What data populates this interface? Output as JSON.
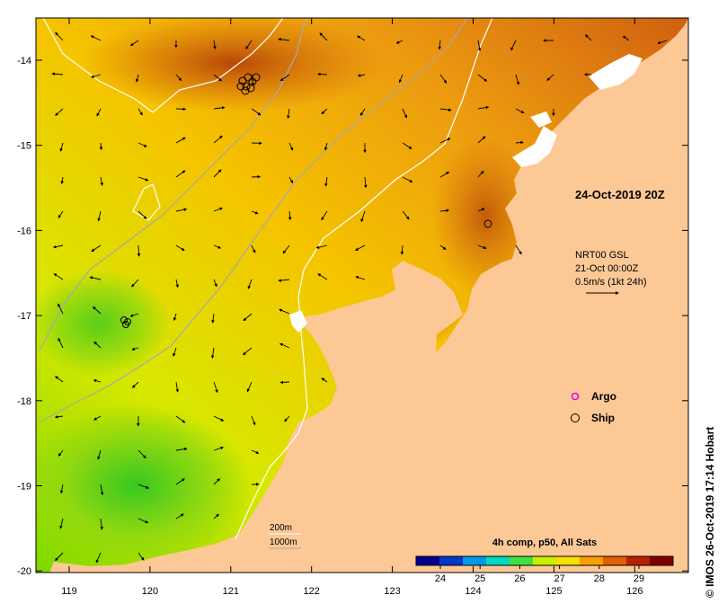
{
  "map": {
    "date_stamp": "24-Oct-2019 20Z",
    "credit": "© IMOS 26-Oct-2019 17:14 Hobart",
    "x_ticks": [
      "119",
      "120",
      "121",
      "122",
      "123",
      "124",
      "125",
      "126"
    ],
    "y_ticks": [
      "-14",
      "-15",
      "-16",
      "-17",
      "-18",
      "-19",
      "-20"
    ],
    "current_info": {
      "line1": "NRT00 GSL",
      "line2": "21-Oct 00:00Z",
      "line3": "0.5m/s (1kt 24h)"
    },
    "legend": {
      "argo": "Argo",
      "ship": "Ship",
      "argo_color": "#e000e0",
      "ship_color": "#000000"
    },
    "isobaths": {
      "shallow": "200m",
      "deep": "1000m",
      "shallow_color": "#ffffff",
      "deep_color": "#a8a8a8"
    },
    "colorbar": {
      "title": "4h comp, p50, All Sats",
      "labels": [
        "24",
        "25",
        "26",
        "27",
        "28",
        "29"
      ],
      "colors": [
        "#00008c",
        "#0038c8",
        "#0098e8",
        "#00d8c0",
        "#40e040",
        "#c8f000",
        "#f8e000",
        "#f8a000",
        "#e06000",
        "#b82000",
        "#800000"
      ]
    },
    "land_color": "#fcc896"
  }
}
